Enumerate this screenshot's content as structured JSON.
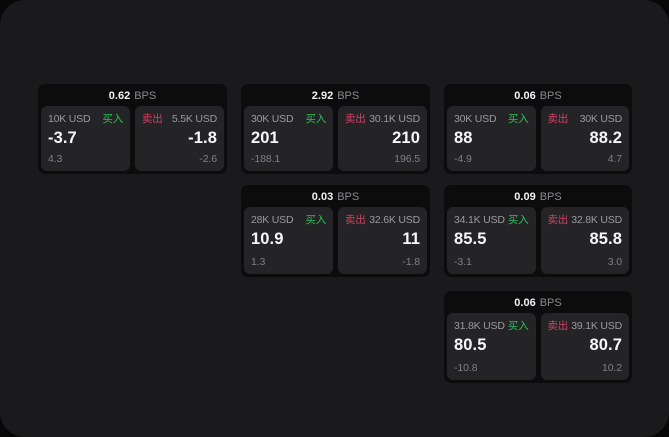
{
  "colors": {
    "buy_green": "#2fbe5b",
    "sell_red": "#cf4262",
    "window_bg": "#1a1a1c",
    "card_bg": "#0c0c0d",
    "panel_bg": "#242427"
  },
  "cards": [
    {
      "bps": "0.62",
      "bps_unit": "BPS",
      "buy": {
        "size": "10K USD",
        "side": "买入",
        "price": "-3.7",
        "delta": "4.3"
      },
      "sell": {
        "side": "卖出",
        "size": "5.5K USD",
        "price": "-1.8",
        "delta": "-2.6"
      }
    },
    {
      "bps": "2.92",
      "bps_unit": "BPS",
      "buy": {
        "size": "30K USD",
        "side": "买入",
        "price": "201",
        "delta": "-188.1"
      },
      "sell": {
        "side": "卖出",
        "size": "30.1K USD",
        "price": "210",
        "delta": "196.5"
      }
    },
    {
      "bps": "0.06",
      "bps_unit": "BPS",
      "buy": {
        "size": "30K USD",
        "side": "买入",
        "price": "88",
        "delta": "-4.9"
      },
      "sell": {
        "side": "卖出",
        "size": "30K USD",
        "price": "88.2",
        "delta": "4.7"
      }
    },
    {
      "bps": "0.03",
      "bps_unit": "BPS",
      "buy": {
        "size": "28K USD",
        "side": "买入",
        "price": "10.9",
        "delta": "1.3"
      },
      "sell": {
        "side": "卖出",
        "size": "32.6K USD",
        "price": "11",
        "delta": "-1.8"
      }
    },
    {
      "bps": "0.09",
      "bps_unit": "BPS",
      "buy": {
        "size": "34.1K USD",
        "side": "买入",
        "price": "85.5",
        "delta": "-3.1"
      },
      "sell": {
        "side": "卖出",
        "size": "32.8K USD",
        "price": "85.8",
        "delta": "3.0"
      }
    },
    {
      "bps": "0.06",
      "bps_unit": "BPS",
      "buy": {
        "size": "31.8K USD",
        "side": "买入",
        "price": "80.5",
        "delta": "-10.8"
      },
      "sell": {
        "side": "卖出",
        "size": "39.1K USD",
        "price": "80.7",
        "delta": "10.2"
      }
    }
  ]
}
